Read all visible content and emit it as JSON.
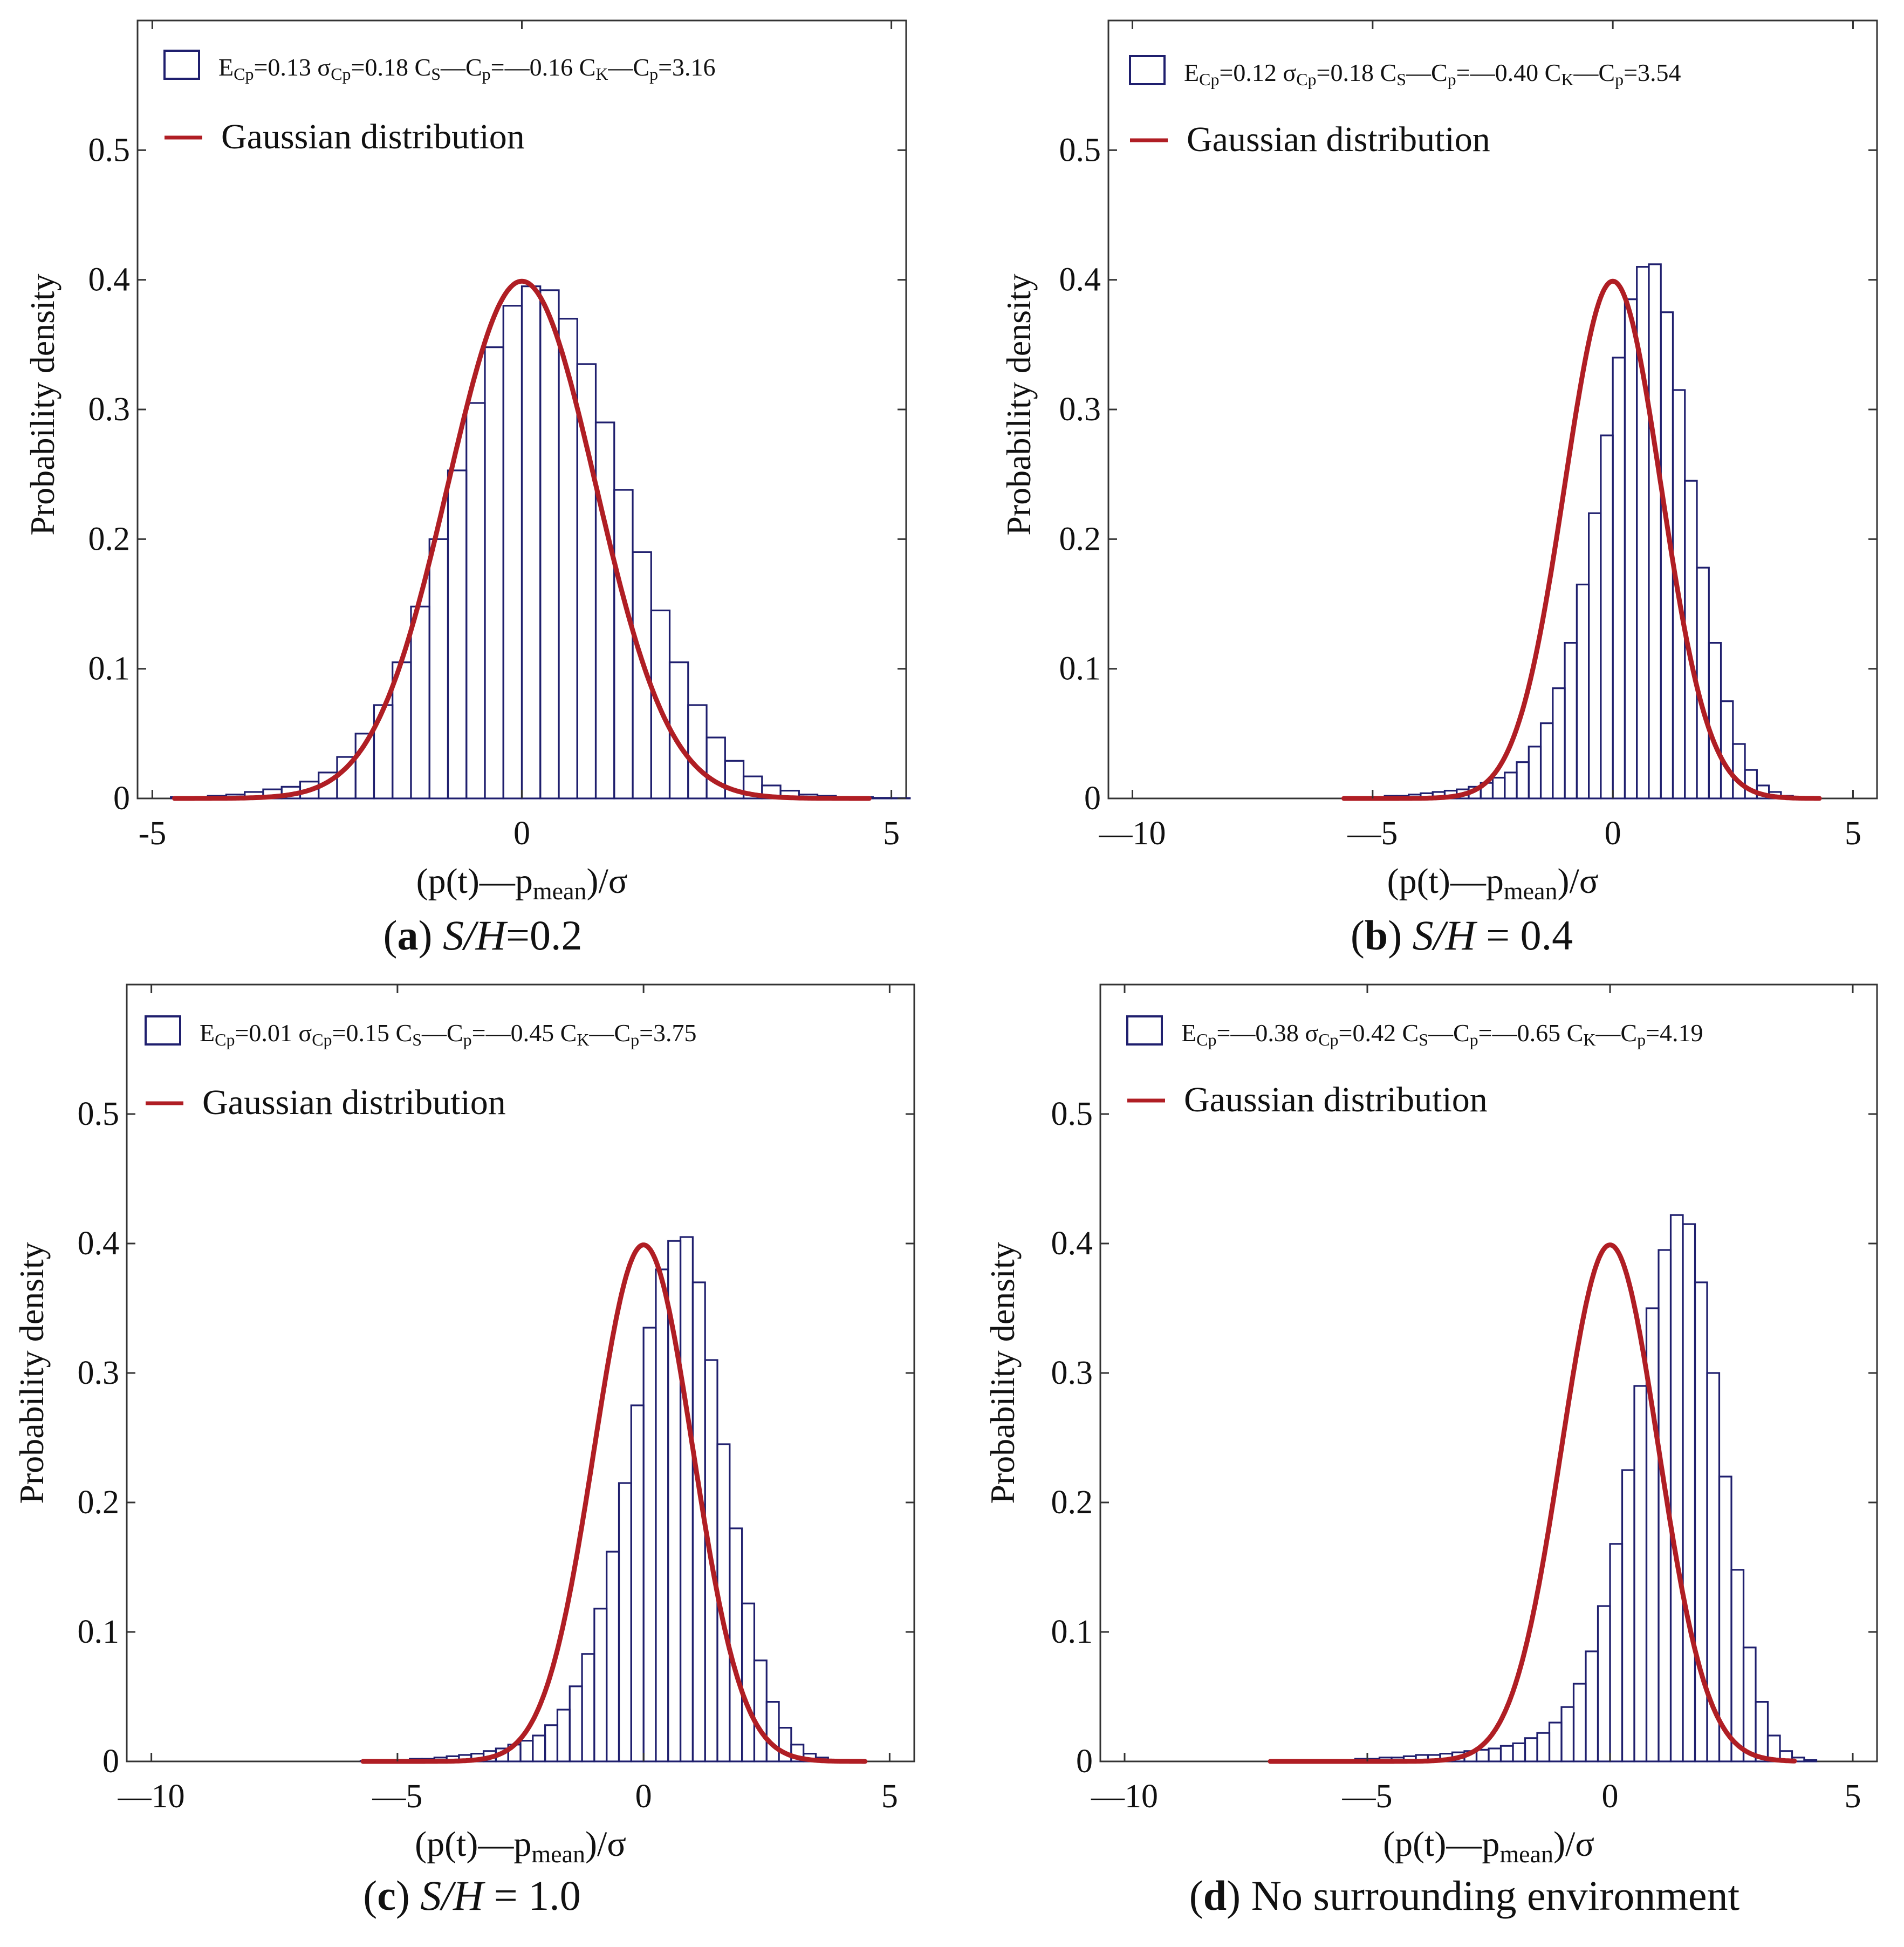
{
  "colors": {
    "bar": "#1f1f6e",
    "curve": "#b01e24",
    "axis": "#333333",
    "text": "#111111"
  },
  "chart_data": [
    {
      "type": "bar",
      "panel_letter": "a",
      "caption_param": "S/H",
      "caption_value": "=0.2",
      "legend": {
        "hist_label_parts": {
          "E": "E",
          "E_sub": "Cp",
          "E_val": "=0.13",
          "sigma": "σ",
          "sigma_sub": "Cp",
          "sigma_val": "=0.18",
          "cs": "C",
          "cs_sub": "S",
          "cs_minus": "—C",
          "cs_p_sub": "p",
          "cs_val": "=—0.16",
          "ck": "C",
          "ck_sub": "K",
          "ck_minus": "—C",
          "ck_p_sub": "p",
          "ck_val": "=3.16"
        },
        "curve_label": "Gaussian distribution"
      },
      "xlabel": {
        "pre": "(p(t)—p",
        "sub": "mean",
        "post": ")/σ"
      },
      "ylabel": "Probability density",
      "xlim": [
        -5.2,
        5.2
      ],
      "ylim": [
        0,
        0.6
      ],
      "xticks": [
        -5,
        0,
        5
      ],
      "xtick_labels": [
        "-5",
        "0",
        "5"
      ],
      "yticks": [
        0,
        0.1,
        0.2,
        0.3,
        0.4,
        0.5
      ],
      "ytick_labels": [
        "0",
        "0.1",
        "0.2",
        "0.3",
        "0.4",
        "0.5"
      ],
      "bin_width": 0.25,
      "bin_start": -4.75,
      "values": [
        0.001,
        0.001,
        0.002,
        0.003,
        0.005,
        0.007,
        0.009,
        0.013,
        0.02,
        0.032,
        0.05,
        0.072,
        0.105,
        0.148,
        0.2,
        0.253,
        0.305,
        0.348,
        0.38,
        0.395,
        0.392,
        0.37,
        0.335,
        0.29,
        0.238,
        0.19,
        0.145,
        0.105,
        0.072,
        0.047,
        0.029,
        0.017,
        0.01,
        0.006,
        0.003,
        0.002,
        0.001,
        0.001,
        0.0005,
        0.0003
      ],
      "curve_range": [
        -4.7,
        4.7
      ]
    },
    {
      "type": "bar",
      "panel_letter": "b",
      "caption_param": "S/H",
      "caption_value": " = 0.4",
      "legend": {
        "hist_label_parts": {
          "E": "E",
          "E_sub": "Cp",
          "E_val": "=0.12",
          "sigma": "σ",
          "sigma_sub": "Cp",
          "sigma_val": "=0.18",
          "cs": "C",
          "cs_sub": "S",
          "cs_minus": "—C",
          "cs_p_sub": "p",
          "cs_val": "=—0.40",
          "ck": "C",
          "ck_sub": "K",
          "ck_minus": "—C",
          "ck_p_sub": "p",
          "ck_val": "=3.54"
        },
        "curve_label": "Gaussian distribution"
      },
      "xlabel": {
        "pre": "(p(t)—p",
        "sub": "mean",
        "post": ")/σ"
      },
      "ylabel": "Probability density",
      "xlim": [
        -10.5,
        5.5
      ],
      "ylim": [
        0,
        0.6
      ],
      "xticks": [
        -10,
        -5,
        0,
        5
      ],
      "xtick_labels": [
        "—10",
        "—5",
        "0",
        "5"
      ],
      "yticks": [
        0,
        0.1,
        0.2,
        0.3,
        0.4,
        0.5
      ],
      "ytick_labels": [
        "0",
        "0.1",
        "0.2",
        "0.3",
        "0.4",
        "0.5"
      ],
      "bin_width": 0.25,
      "bin_start": -5.5,
      "values": [
        0.0005,
        0.001,
        0.001,
        0.002,
        0.002,
        0.003,
        0.004,
        0.005,
        0.006,
        0.007,
        0.009,
        0.012,
        0.016,
        0.02,
        0.028,
        0.04,
        0.058,
        0.085,
        0.12,
        0.165,
        0.22,
        0.28,
        0.34,
        0.385,
        0.41,
        0.412,
        0.375,
        0.315,
        0.245,
        0.178,
        0.12,
        0.075,
        0.042,
        0.022,
        0.01,
        0.005,
        0.002,
        0.001
      ],
      "curve_range": [
        -5.6,
        4.3
      ]
    },
    {
      "type": "bar",
      "panel_letter": "c",
      "caption_param": "S/H",
      "caption_value": " = 1.0",
      "legend": {
        "hist_label_parts": {
          "E": "E",
          "E_sub": "Cp",
          "E_val": "=0.01",
          "sigma": "σ",
          "sigma_sub": "Cp",
          "sigma_val": "=0.15",
          "cs": "C",
          "cs_sub": "S",
          "cs_minus": "—C",
          "cs_p_sub": "p",
          "cs_val": "=—0.45",
          "ck": "C",
          "ck_sub": "K",
          "ck_minus": "—C",
          "ck_p_sub": "p",
          "ck_val": "=3.75"
        },
        "curve_label": "Gaussian distribution"
      },
      "xlabel": {
        "pre": "(p(t)—p",
        "sub": "mean",
        "post": ")/σ"
      },
      "ylabel": "Probability density",
      "xlim": [
        -10.5,
        5.5
      ],
      "ylim": [
        0,
        0.6
      ],
      "xticks": [
        -10,
        -5,
        0,
        5
      ],
      "xtick_labels": [
        "—10",
        "—5",
        "0",
        "5"
      ],
      "yticks": [
        0,
        0.1,
        0.2,
        0.3,
        0.4,
        0.5
      ],
      "ytick_labels": [
        "0",
        "0.1",
        "0.2",
        "0.3",
        "0.4",
        "0.5"
      ],
      "bin_width": 0.25,
      "bin_start": -5.75,
      "values": [
        0.0005,
        0.0005,
        0.001,
        0.001,
        0.002,
        0.002,
        0.003,
        0.004,
        0.005,
        0.006,
        0.008,
        0.01,
        0.013,
        0.016,
        0.02,
        0.028,
        0.04,
        0.058,
        0.083,
        0.118,
        0.162,
        0.215,
        0.275,
        0.335,
        0.38,
        0.402,
        0.405,
        0.37,
        0.31,
        0.245,
        0.18,
        0.122,
        0.078,
        0.046,
        0.026,
        0.013,
        0.006,
        0.003,
        0.001
      ],
      "curve_range": [
        -5.7,
        4.5
      ]
    },
    {
      "type": "bar",
      "panel_letter": "d",
      "caption_param": "",
      "caption_value": "No surrounding environment",
      "legend": {
        "hist_label_parts": {
          "E": "E",
          "E_sub": "Cp",
          "E_val": "=—0.38",
          "sigma": "σ",
          "sigma_sub": "Cp",
          "sigma_val": "=0.42",
          "cs": "C",
          "cs_sub": "S",
          "cs_minus": "—C",
          "cs_p_sub": "p",
          "cs_val": "=—0.65",
          "ck": "C",
          "ck_sub": "K",
          "ck_minus": "—C",
          "ck_p_sub": "p",
          "ck_val": "=4.19"
        },
        "curve_label": "Gaussian distribution"
      },
      "xlabel": {
        "pre": "(p(t)—p",
        "sub": "mean",
        "post": ")/σ"
      },
      "ylabel": "Probability density",
      "xlim": [
        -10.5,
        5.5
      ],
      "ylim": [
        0,
        0.6
      ],
      "xticks": [
        -10,
        -5,
        0,
        5
      ],
      "xtick_labels": [
        "—10",
        "—5",
        "0",
        "5"
      ],
      "yticks": [
        0,
        0.1,
        0.2,
        0.3,
        0.4,
        0.5
      ],
      "ytick_labels": [
        "0",
        "0.1",
        "0.2",
        "0.3",
        "0.4",
        "0.5"
      ],
      "bin_width": 0.25,
      "bin_start": -6.75,
      "values": [
        0.0003,
        0.0005,
        0.0005,
        0.001,
        0.001,
        0.001,
        0.002,
        0.002,
        0.003,
        0.003,
        0.004,
        0.005,
        0.005,
        0.006,
        0.007,
        0.008,
        0.009,
        0.01,
        0.012,
        0.014,
        0.018,
        0.022,
        0.03,
        0.042,
        0.06,
        0.085,
        0.12,
        0.168,
        0.225,
        0.29,
        0.35,
        0.395,
        0.422,
        0.415,
        0.37,
        0.3,
        0.22,
        0.148,
        0.088,
        0.046,
        0.02,
        0.008,
        0.003,
        0.001
      ],
      "curve_range": [
        -7.0,
        3.8
      ]
    }
  ]
}
